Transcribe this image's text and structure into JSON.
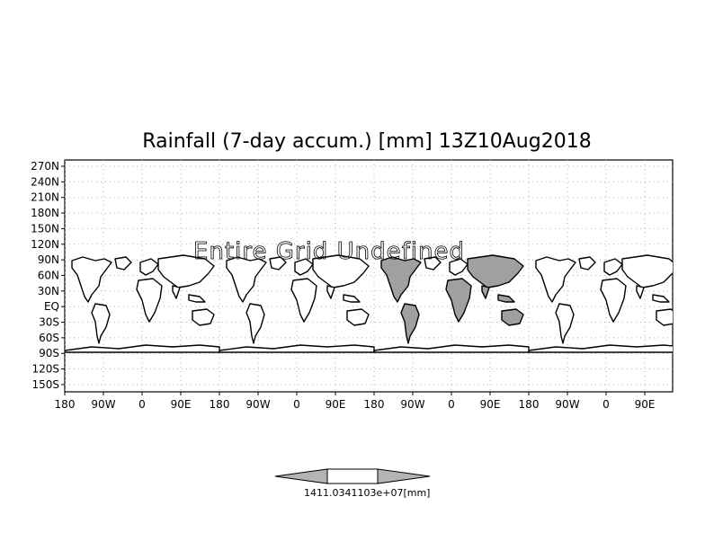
{
  "title": "Rainfall (7-day accum.) [mm] 13Z10Aug2018",
  "overlay_message": "Entire Grid Undefined",
  "lat_ticks": [
    "270N",
    "240N",
    "210N",
    "180N",
    "150N",
    "120N",
    "90N",
    "60N",
    "30N",
    "EQ",
    "30S",
    "60S",
    "90S",
    "120S",
    "150S"
  ],
  "lon_ticks": [
    "180",
    "90W",
    "0",
    "90E",
    "180",
    "90W",
    "0",
    "90E",
    "180",
    "90W",
    "0",
    "90E",
    "180",
    "90W",
    "0",
    "90E"
  ],
  "colorbar": {
    "label": "1411.0341103e+07[mm]",
    "colors": {
      "arrows": "#b4b4b4",
      "middle": "#ffffff"
    }
  },
  "map": {
    "land_fill_highlight": "#a0a0a0",
    "land_fill": "#ffffff",
    "coast_color": "#000000",
    "grid_color": "#b0b0b0"
  }
}
